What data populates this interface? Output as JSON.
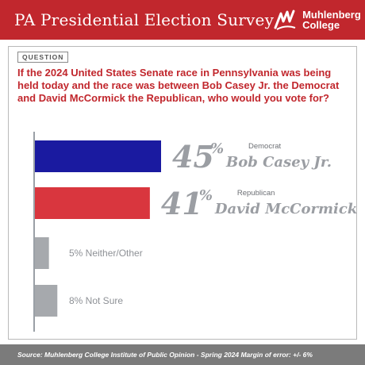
{
  "header": {
    "title": "PA Presidential Election Survey",
    "logo_line1": "Muhlenberg",
    "logo_line2": "College"
  },
  "question_tag": "QUESTION",
  "question": "If the 2024 United States Senate race in Pennsylvania was being held today and the race was between Bob Casey Jr. the Democrat and David McCormick the Republican, who would you vote for?",
  "footer": "Source: Muhlenberg College Institute of Public Opinion - Spring 2024 Margin of error: +/- 6%",
  "colors": {
    "brand_red": "#c1272d",
    "democrat": "#1a1aa0",
    "republican": "#d9363e",
    "other": "#a6a9ad",
    "label_gray": "#9b9ea3"
  },
  "chart_data": {
    "type": "bar",
    "orientation": "horizontal",
    "categories": [
      "Bob Casey Jr.",
      "David McCormick",
      "Neither/Other",
      "Not Sure"
    ],
    "parties": [
      "Democrat",
      "Republican",
      "",
      ""
    ],
    "values": [
      45,
      41,
      5,
      8
    ],
    "value_labels": [
      "45%",
      "41%",
      "5%",
      "8%"
    ],
    "unit": "%",
    "title": "",
    "xlabel": "",
    "ylabel": "",
    "grid": false
  }
}
